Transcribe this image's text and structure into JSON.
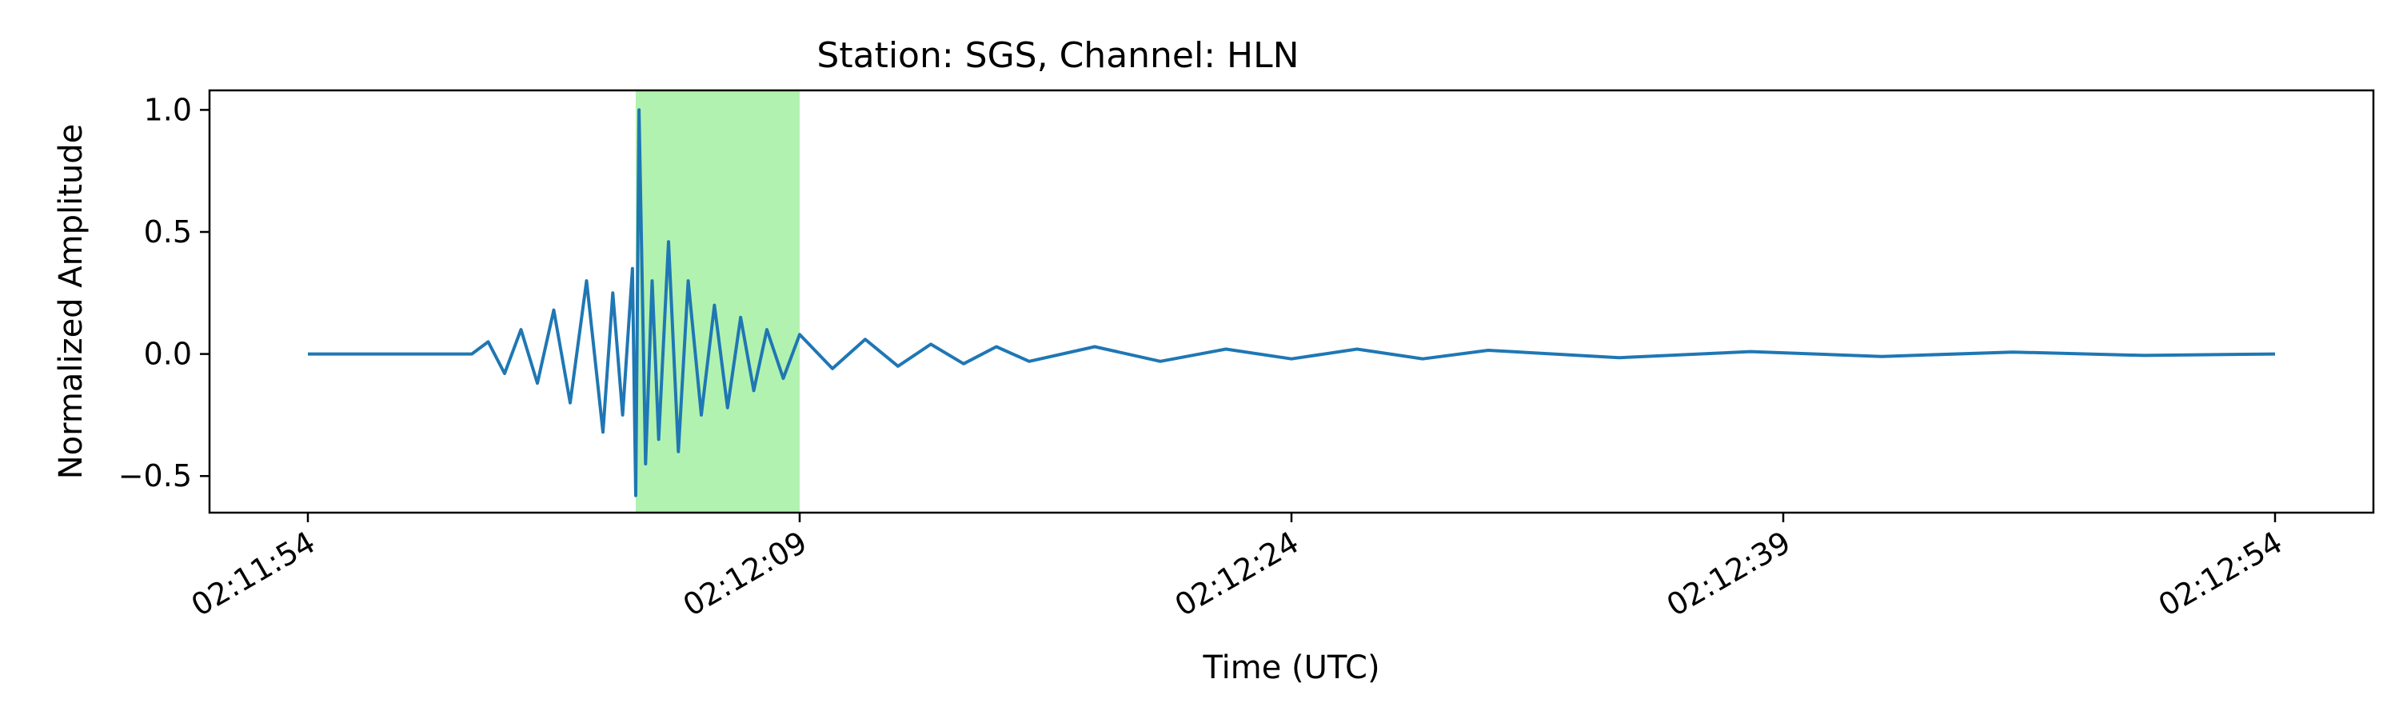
{
  "chart_data": {
    "type": "line",
    "title": "Station: SGS, Channel: HLN",
    "xlabel": "Time (UTC)",
    "ylabel": "Normalized Amplitude",
    "x_unit": "time (UTC)",
    "xlim": [
      "02:11:51",
      "02:12:57"
    ],
    "ylim": [
      -0.65,
      1.08
    ],
    "x_ticks": [
      "02:11:54",
      "02:12:09",
      "02:12:24",
      "02:12:39",
      "02:12:54"
    ],
    "y_ticks": [
      -0.5,
      0.0,
      0.5,
      1.0
    ],
    "y_tick_labels": [
      "−0.5",
      "0.0",
      "0.5",
      "1.0"
    ],
    "grid": false,
    "legend": "none",
    "highlight": {
      "x_start": "02:12:04",
      "x_end": "02:12:09",
      "color": "#b2f2b0"
    },
    "series": [
      {
        "color": "#1f77b4",
        "x": [
          "02:11:54",
          "02:11:59",
          "02:11:59.5",
          "02:12:00",
          "02:12:00.5",
          "02:12:01",
          "02:12:01.5",
          "02:12:02",
          "02:12:02.5",
          "02:12:03",
          "02:12:03.3",
          "02:12:03.6",
          "02:12:03.9",
          "02:12:04",
          "02:12:04.1",
          "02:12:04.3",
          "02:12:04.5",
          "02:12:04.7",
          "02:12:05",
          "02:12:05.3",
          "02:12:05.6",
          "02:12:06",
          "02:12:06.4",
          "02:12:06.8",
          "02:12:07.2",
          "02:12:07.6",
          "02:12:08",
          "02:12:08.5",
          "02:12:09",
          "02:12:10",
          "02:12:11",
          "02:12:12",
          "02:12:13",
          "02:12:14",
          "02:12:15",
          "02:12:16",
          "02:12:18",
          "02:12:20",
          "02:12:22",
          "02:12:24",
          "02:12:26",
          "02:12:28",
          "02:12:30",
          "02:12:34",
          "02:12:38",
          "02:12:42",
          "02:12:46",
          "02:12:50",
          "02:12:54"
        ],
        "y": [
          0.0,
          0.0,
          0.05,
          -0.08,
          0.1,
          -0.12,
          0.18,
          -0.2,
          0.3,
          -0.32,
          0.25,
          -0.25,
          0.35,
          -0.58,
          1.0,
          -0.45,
          0.3,
          -0.35,
          0.46,
          -0.4,
          0.3,
          -0.25,
          0.2,
          -0.22,
          0.15,
          -0.15,
          0.1,
          -0.1,
          0.08,
          -0.06,
          0.06,
          -0.05,
          0.04,
          -0.04,
          0.03,
          -0.03,
          0.03,
          -0.03,
          0.02,
          -0.02,
          0.02,
          -0.02,
          0.015,
          -0.015,
          0.01,
          -0.01,
          0.008,
          -0.006,
          0.0
        ]
      }
    ]
  }
}
